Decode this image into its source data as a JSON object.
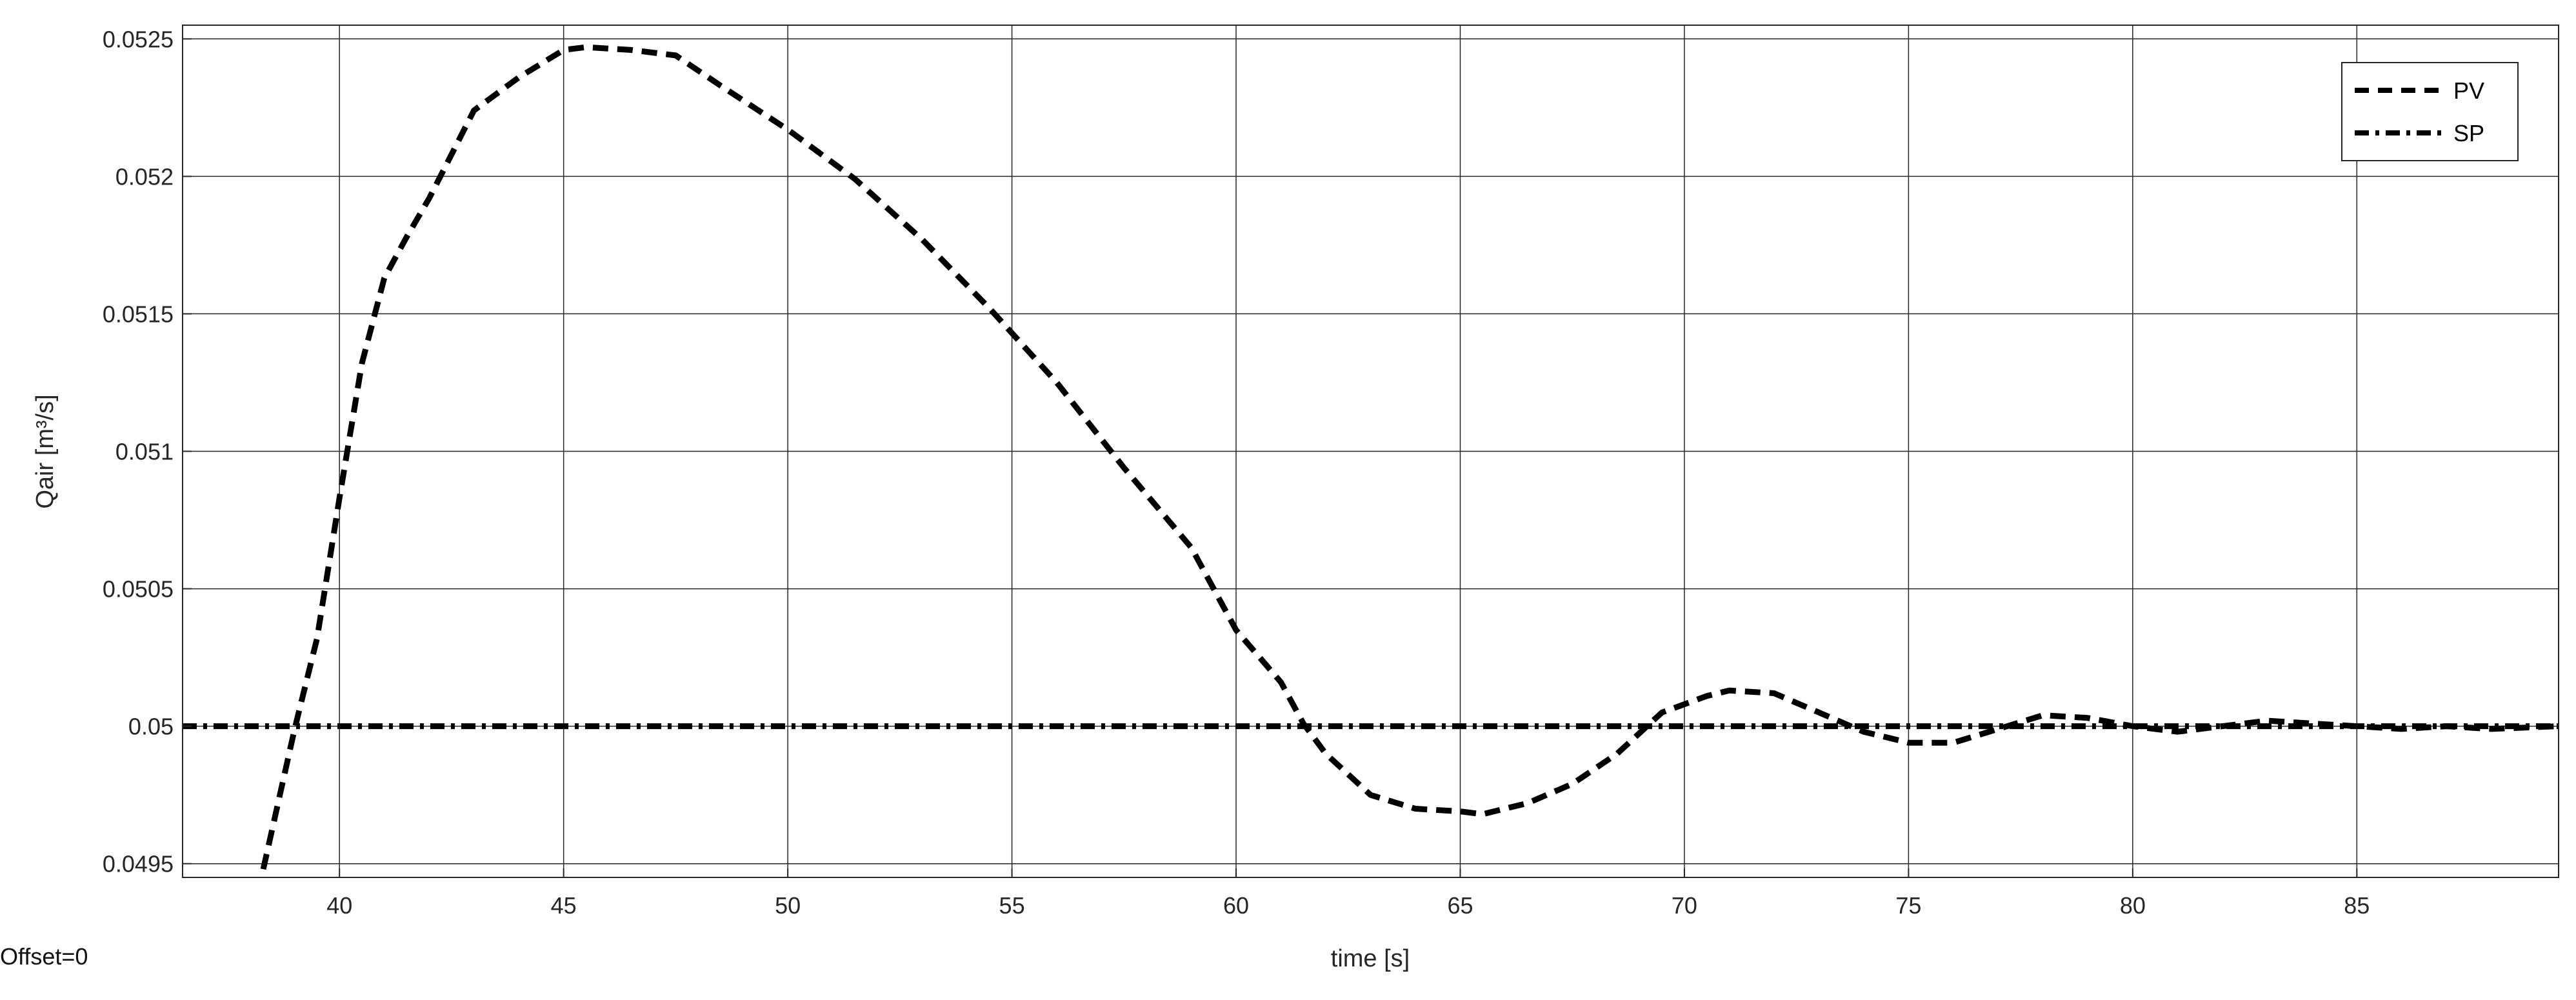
{
  "chart_data": {
    "type": "line",
    "xlabel": "time [s]",
    "ylabel": "Qair [m³/s]",
    "xlim": [
      36.5,
      89.5
    ],
    "ylim": [
      0.04945,
      0.05255
    ],
    "xticks": [
      40,
      45,
      50,
      55,
      60,
      65,
      70,
      75,
      80,
      85
    ],
    "xtick_labels": [
      "40",
      "45",
      "50",
      "55",
      "60",
      "65",
      "70",
      "75",
      "80",
      "85"
    ],
    "yticks": [
      0.0495,
      0.05,
      0.0505,
      0.051,
      0.0515,
      0.052,
      0.0525
    ],
    "ytick_labels": [
      "0.0495",
      "0.05",
      "0.0505",
      "0.051",
      "0.0515",
      "0.052",
      "0.0525"
    ],
    "grid": true,
    "legend_position": "top-right",
    "series": [
      {
        "name": "PV",
        "style": "dashed",
        "color": "#000000",
        "x": [
          38.3,
          39.0,
          39.5,
          40.0,
          40.5,
          41.0,
          41.5,
          42.0,
          43.0,
          44.0,
          45.0,
          45.5,
          46.5,
          47.5,
          48.5,
          50.0,
          51.5,
          53.0,
          54.5,
          56.0,
          57.5,
          59.0,
          60.0,
          61.0,
          61.5,
          62.0,
          63.0,
          64.0,
          65.0,
          65.5,
          66.5,
          67.5,
          68.5,
          69.5,
          70.5,
          71.0,
          72.0,
          73.0,
          74.0,
          75.0,
          76.0,
          77.0,
          78.0,
          79.0,
          80.0,
          81.0,
          82.0,
          83.0,
          84.0,
          85.0,
          86.0,
          87.0,
          88.0,
          89.5
        ],
        "y": [
          0.04948,
          0.04999,
          0.05032,
          0.05083,
          0.05132,
          0.05163,
          0.05178,
          0.05192,
          0.05224,
          0.05236,
          0.05246,
          0.05247,
          0.05246,
          0.05244,
          0.05233,
          0.05217,
          0.05199,
          0.05177,
          0.05152,
          0.05125,
          0.05094,
          0.05065,
          0.05035,
          0.05016,
          0.05001,
          0.0499,
          0.04975,
          0.0497,
          0.04969,
          0.04968,
          0.04972,
          0.04979,
          0.0499,
          0.05005,
          0.05011,
          0.05013,
          0.05012,
          0.05005,
          0.04998,
          0.04994,
          0.04994,
          0.04999,
          0.05004,
          0.05003,
          0.05,
          0.04998,
          0.05,
          0.05002,
          0.05001,
          0.05,
          0.04999,
          0.05,
          0.04999,
          0.05
        ]
      },
      {
        "name": "SP",
        "style": "dashdot",
        "color": "#000000",
        "x": [
          36.5,
          89.5
        ],
        "y": [
          0.05,
          0.05
        ]
      }
    ],
    "annotations": [
      "Offset=0"
    ]
  },
  "footer": {
    "offset_label": "Offset=0"
  }
}
